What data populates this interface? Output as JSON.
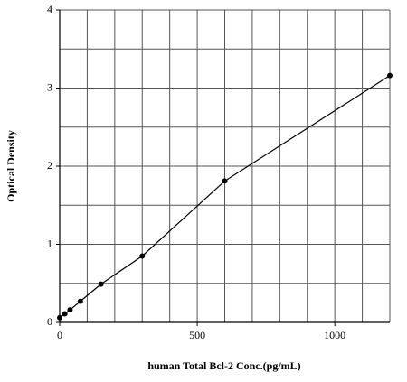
{
  "chart_data": {
    "type": "line",
    "x_label": "human Total Bcl-2 Conc.(pg/mL)",
    "y_label": "Optical Density",
    "x": [
      0,
      18.75,
      37.5,
      75,
      150,
      300,
      600,
      1200
    ],
    "series": [
      {
        "color": "#000000",
        "values": [
          0.06,
          0.11,
          0.16,
          0.27,
          0.49,
          0.85,
          1.81,
          3.16
        ]
      }
    ],
    "xlim": [
      0,
      1200
    ],
    "ylim": [
      0,
      4
    ],
    "xticks": [
      0,
      500,
      1000
    ],
    "yticks": [
      0,
      1,
      2,
      3,
      4
    ],
    "xgrid": [
      100,
      200,
      300,
      400,
      500,
      600,
      700,
      800,
      900,
      1000,
      1100,
      1200
    ],
    "ygrid": [
      0.5,
      1,
      1.5,
      2,
      2.5,
      3,
      3.5,
      4
    ],
    "grid": true,
    "markers": true
  }
}
